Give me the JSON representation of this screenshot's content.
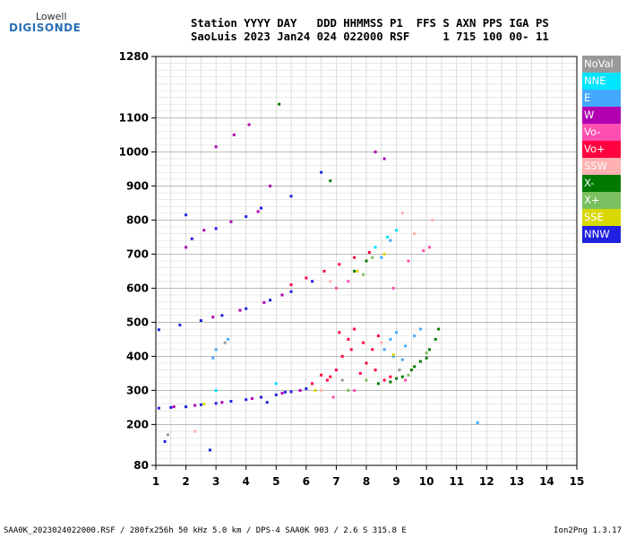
{
  "logo": {
    "top": "Lowell",
    "main": "DIGISONDE"
  },
  "header": {
    "line1": "Station YYYY DAY   DDD HHMMSS P1  FFS S AXN PPS IGA PS",
    "line2": "SaoLuis 2023 Jan24 024 022000 RSF     1 715 100 00- 11"
  },
  "legend": [
    {
      "label": "NoVal",
      "color": "#9a9a9a"
    },
    {
      "label": "NNE",
      "color": "#00e5ff"
    },
    {
      "label": "E",
      "color": "#44a8ff"
    },
    {
      "label": "W",
      "color": "#b000b0"
    },
    {
      "label": "Vo-",
      "color": "#ff4fb0"
    },
    {
      "label": "Vo+",
      "color": "#ff0040"
    },
    {
      "label": "SSW",
      "color": "#ffb0b0"
    },
    {
      "label": "X-",
      "color": "#007a00"
    },
    {
      "label": "X+",
      "color": "#7ac060"
    },
    {
      "label": "SSE",
      "color": "#d8d800"
    },
    {
      "label": "NNW",
      "color": "#2020e0"
    }
  ],
  "footer": {
    "left": "SAA0K_2023024022000.RSF / 280fx256h 50 kHz 5.0 km / DPS-4 SAA0K 903 / 2.6 S 315.8 E",
    "right": "Ion2Png 1.3.17"
  },
  "chart_data": {
    "type": "scatter",
    "title": "",
    "xlabel": "",
    "ylabel": "",
    "xlim": [
      1,
      15
    ],
    "ylim": [
      80,
      1280
    ],
    "x_ticks": [
      "1",
      "2",
      "3",
      "4",
      "5",
      "6",
      "7",
      "8",
      "9",
      "10",
      "11",
      "12",
      "13",
      "14",
      "15"
    ],
    "y_ticks": [
      "80",
      "200",
      "300",
      "400",
      "500",
      "600",
      "700",
      "800",
      "900",
      "1000",
      "1100",
      "1280"
    ],
    "y_tick_values": [
      80,
      200,
      300,
      400,
      500,
      600,
      700,
      800,
      900,
      1000,
      1100,
      1280
    ],
    "grid": true,
    "series": [
      {
        "name": "NNW",
        "color": "#2020e0",
        "points": [
          [
            1.1,
            248
          ],
          [
            1.5,
            250
          ],
          [
            2.0,
            252
          ],
          [
            2.5,
            258
          ],
          [
            3.0,
            262
          ],
          [
            3.5,
            268
          ],
          [
            4.0,
            273
          ],
          [
            4.5,
            280
          ],
          [
            5.0,
            287
          ],
          [
            5.5,
            296
          ],
          [
            6.0,
            305
          ],
          [
            1.1,
            478
          ],
          [
            1.8,
            492
          ],
          [
            2.5,
            505
          ],
          [
            3.2,
            520
          ],
          [
            4.0,
            540
          ],
          [
            4.8,
            565
          ],
          [
            5.5,
            590
          ],
          [
            6.2,
            620
          ],
          [
            2.2,
            745
          ],
          [
            3.0,
            775
          ],
          [
            4.0,
            810
          ],
          [
            4.5,
            835
          ],
          [
            2.0,
            815
          ],
          [
            5.5,
            870
          ],
          [
            6.5,
            940
          ],
          [
            1.3,
            150
          ],
          [
            2.8,
            125
          ],
          [
            4.7,
            265
          ],
          [
            5.3,
            295
          ]
        ]
      },
      {
        "name": "Vo+",
        "color": "#ff0040",
        "points": [
          [
            6.7,
            330
          ],
          [
            7.0,
            360
          ],
          [
            7.2,
            400
          ],
          [
            7.4,
            450
          ],
          [
            7.6,
            480
          ],
          [
            7.8,
            350
          ],
          [
            8.0,
            380
          ],
          [
            8.2,
            420
          ],
          [
            8.4,
            460
          ],
          [
            8.6,
            330
          ],
          [
            6.8,
            340
          ],
          [
            7.5,
            420
          ],
          [
            7.9,
            440
          ],
          [
            8.3,
            360
          ],
          [
            8.8,
            340
          ],
          [
            6.2,
            320
          ],
          [
            6.5,
            345
          ],
          [
            7.1,
            470
          ],
          [
            5.5,
            610
          ],
          [
            6.0,
            630
          ],
          [
            6.6,
            650
          ],
          [
            7.1,
            670
          ],
          [
            7.6,
            690
          ],
          [
            8.1,
            705
          ]
        ]
      },
      {
        "name": "W",
        "color": "#b000b0",
        "points": [
          [
            1.6,
            252
          ],
          [
            2.3,
            256
          ],
          [
            3.2,
            265
          ],
          [
            4.2,
            276
          ],
          [
            5.2,
            292
          ],
          [
            5.8,
            300
          ],
          [
            2.9,
            515
          ],
          [
            3.8,
            535
          ],
          [
            4.6,
            558
          ],
          [
            5.2,
            580
          ],
          [
            3.0,
            1015
          ],
          [
            3.6,
            1050
          ],
          [
            4.1,
            1080
          ],
          [
            2.6,
            770
          ],
          [
            3.5,
            795
          ],
          [
            4.4,
            825
          ],
          [
            8.3,
            1000
          ],
          [
            8.6,
            980
          ],
          [
            4.8,
            900
          ],
          [
            2.0,
            720
          ]
        ]
      },
      {
        "name": "X-",
        "color": "#007a00",
        "points": [
          [
            8.8,
            325
          ],
          [
            9.2,
            340
          ],
          [
            9.5,
            360
          ],
          [
            9.8,
            385
          ],
          [
            10.1,
            420
          ],
          [
            10.3,
            450
          ],
          [
            10.4,
            480
          ],
          [
            10.0,
            395
          ],
          [
            9.6,
            370
          ],
          [
            9.0,
            335
          ],
          [
            8.4,
            320
          ],
          [
            5.1,
            1140
          ],
          [
            7.6,
            650
          ],
          [
            8.0,
            680
          ],
          [
            6.8,
            915
          ]
        ]
      },
      {
        "name": "E",
        "color": "#44a8ff",
        "points": [
          [
            8.6,
            420
          ],
          [
            8.8,
            450
          ],
          [
            9.0,
            470
          ],
          [
            9.3,
            430
          ],
          [
            9.6,
            460
          ],
          [
            9.8,
            480
          ],
          [
            8.9,
            400
          ],
          [
            9.2,
            390
          ],
          [
            3.0,
            420
          ],
          [
            3.4,
            450
          ],
          [
            2.9,
            395
          ],
          [
            11.7,
            205
          ],
          [
            8.5,
            690
          ],
          [
            8.8,
            740
          ]
        ]
      },
      {
        "name": "NNE",
        "color": "#00e5ff",
        "points": [
          [
            8.3,
            720
          ],
          [
            8.7,
            750
          ],
          [
            9.0,
            770
          ],
          [
            3.0,
            300
          ],
          [
            5.0,
            320
          ]
        ]
      },
      {
        "name": "Vo-",
        "color": "#ff4fb0",
        "points": [
          [
            7.0,
            600
          ],
          [
            7.4,
            620
          ],
          [
            8.9,
            600
          ],
          [
            9.4,
            680
          ],
          [
            9.9,
            710
          ],
          [
            10.1,
            720
          ],
          [
            6.9,
            280
          ],
          [
            7.6,
            300
          ],
          [
            9.3,
            330
          ]
        ]
      },
      {
        "name": "SSW",
        "color": "#ffb0b0",
        "points": [
          [
            6.8,
            620
          ],
          [
            9.6,
            760
          ],
          [
            10.2,
            800
          ],
          [
            9.2,
            820
          ],
          [
            8.5,
            440
          ],
          [
            2.3,
            180
          ],
          [
            6.5,
            300
          ]
        ]
      },
      {
        "name": "X+",
        "color": "#7ac060",
        "points": [
          [
            7.9,
            640
          ],
          [
            8.2,
            690
          ],
          [
            8.0,
            330
          ],
          [
            9.4,
            345
          ],
          [
            10.0,
            410
          ],
          [
            7.4,
            300
          ]
        ]
      },
      {
        "name": "SSE",
        "color": "#d8d800",
        "points": [
          [
            6.3,
            300
          ],
          [
            7.7,
            650
          ],
          [
            8.6,
            700
          ],
          [
            2.6,
            260
          ],
          [
            8.9,
            405
          ]
        ]
      },
      {
        "name": "NoVal",
        "color": "#9a9a9a",
        "points": [
          [
            1.4,
            170
          ],
          [
            7.2,
            330
          ],
          [
            9.1,
            360
          ],
          [
            3.3,
            440
          ]
        ]
      }
    ]
  }
}
